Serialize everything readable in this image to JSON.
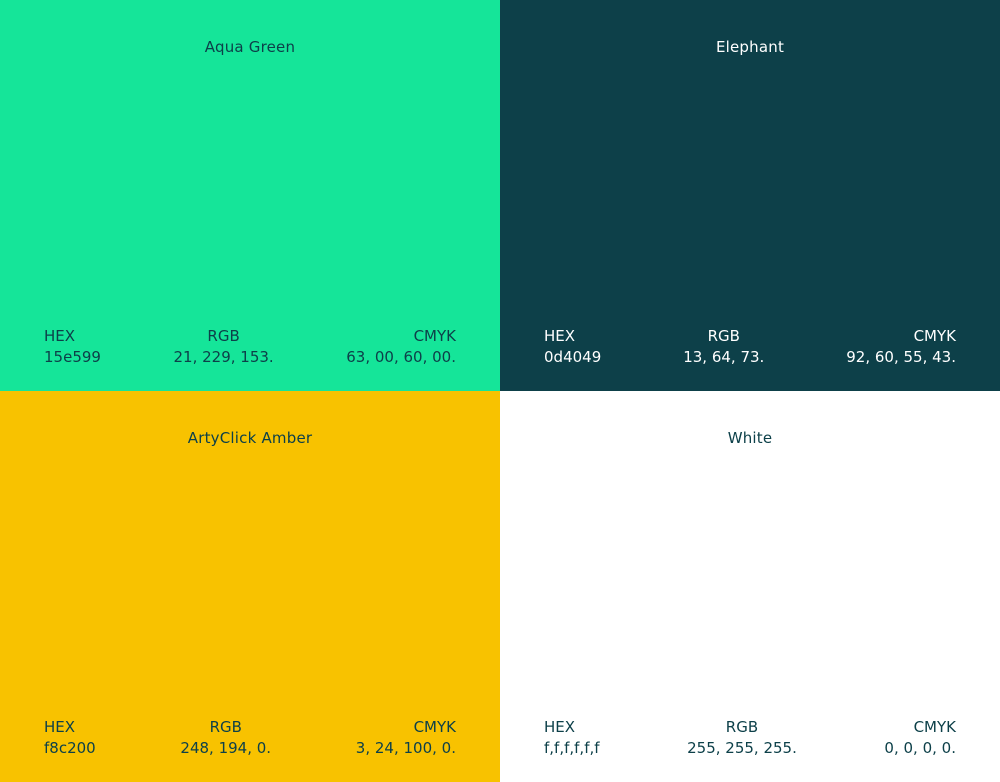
{
  "swatches": [
    {
      "name": "Aqua Green",
      "background": "#15e599",
      "text_color": "#0d4049",
      "hex_label": "HEX",
      "hex_value": "15e599",
      "rgb_label": "RGB",
      "rgb_value": "21, 229, 153.",
      "cmyk_label": "CMYK",
      "cmyk_value": "63, 00, 60, 00."
    },
    {
      "name": "Elephant",
      "background": "#0d4049",
      "text_color": "#ffffff",
      "hex_label": "HEX",
      "hex_value": "0d4049",
      "rgb_label": "RGB",
      "rgb_value": "13, 64, 73.",
      "cmyk_label": "CMYK",
      "cmyk_value": "92, 60, 55, 43."
    },
    {
      "name": "ArtyClick Amber",
      "background": "#f8c200",
      "text_color": "#0d4049",
      "hex_label": "HEX",
      "hex_value": "f8c200",
      "rgb_label": "RGB",
      "rgb_value": "248, 194, 0.",
      "cmyk_label": "CMYK",
      "cmyk_value": "3, 24, 100, 0."
    },
    {
      "name": "White",
      "background": "#ffffff",
      "text_color": "#0d4049",
      "hex_label": "HEX",
      "hex_value": "f,f,f,f,f,f",
      "rgb_label": "RGB",
      "rgb_value": "255, 255, 255.",
      "cmyk_label": "CMYK",
      "cmyk_value": "0, 0, 0, 0."
    }
  ]
}
